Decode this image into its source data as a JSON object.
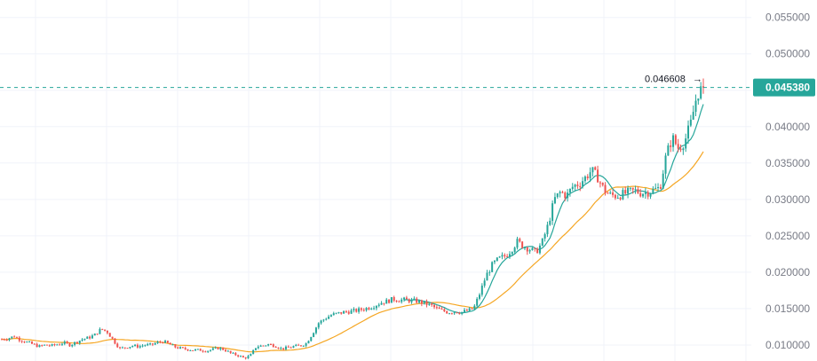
{
  "chart_data": {
    "type": "candlestick",
    "y_axis": {
      "ticks": [
        "0.010000",
        "0.015000",
        "0.020000",
        "0.025000",
        "0.030000",
        "0.035000",
        "0.040000",
        "0.045000",
        "0.050000",
        "0.055000"
      ],
      "tick_values": [
        0.01,
        0.015,
        0.02,
        0.025,
        0.03,
        0.035,
        0.04,
        0.045,
        0.05,
        0.055
      ],
      "ylim": [
        0.0078,
        0.0574
      ],
      "position": "right"
    },
    "grid": true,
    "current_price": {
      "label": "0.045380",
      "value": 0.04538,
      "color": "#26a69a"
    },
    "peak_annotation": {
      "label": "0.046608",
      "value": 0.046608
    },
    "colors": {
      "up": "#26a69a",
      "down": "#ef5350",
      "ma_fast": "#26a69a",
      "ma_slow": "#f5a623",
      "grid": "#f0f3fa"
    },
    "price_path": [
      0.0108,
      0.0109,
      0.0112,
      0.0107,
      0.0104,
      0.0101,
      0.0098,
      0.01,
      0.0099,
      0.0101,
      0.0103,
      0.01,
      0.0104,
      0.0108,
      0.011,
      0.0114,
      0.0122,
      0.0118,
      0.0106,
      0.0095,
      0.0097,
      0.0099,
      0.0098,
      0.01,
      0.01,
      0.0103,
      0.0105,
      0.0101,
      0.0097,
      0.0095,
      0.0094,
      0.0093,
      0.0093,
      0.0092,
      0.0094,
      0.0096,
      0.0093,
      0.0088,
      0.0086,
      0.0082,
      0.0085,
      0.0098,
      0.0099,
      0.0101,
      0.0099,
      0.0095,
      0.0096,
      0.0098,
      0.0099,
      0.0102,
      0.0115,
      0.013,
      0.0136,
      0.0141,
      0.0143,
      0.0145,
      0.0146,
      0.0147,
      0.0149,
      0.0151,
      0.0154,
      0.0158,
      0.016,
      0.0163,
      0.0162,
      0.0162,
      0.0161,
      0.016,
      0.0157,
      0.0155,
      0.015,
      0.0147,
      0.0145,
      0.0146,
      0.0145,
      0.0147,
      0.015,
      0.0171,
      0.0195,
      0.021,
      0.0218,
      0.0222,
      0.023,
      0.0242,
      0.0236,
      0.0232,
      0.0227,
      0.024,
      0.0265,
      0.03,
      0.031,
      0.0305,
      0.0318,
      0.0322,
      0.033,
      0.034,
      0.033,
      0.0313,
      0.0306,
      0.0305,
      0.0307,
      0.031,
      0.0312,
      0.0309,
      0.031,
      0.0313,
      0.0316,
      0.036,
      0.0385,
      0.037,
      0.038,
      0.0405,
      0.0445,
      0.04538
    ]
  }
}
